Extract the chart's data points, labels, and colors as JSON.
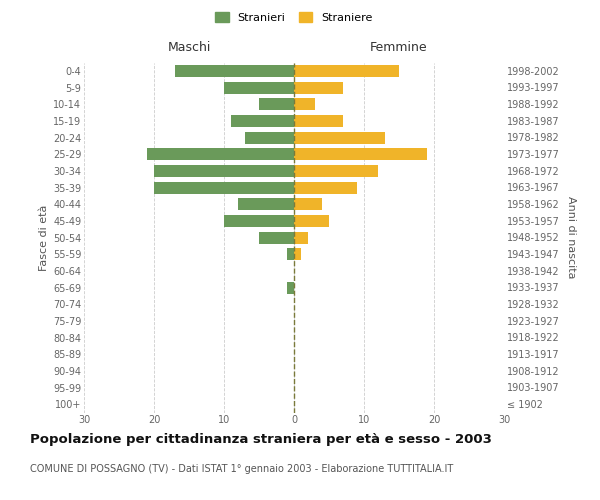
{
  "age_groups": [
    "100+",
    "95-99",
    "90-94",
    "85-89",
    "80-84",
    "75-79",
    "70-74",
    "65-69",
    "60-64",
    "55-59",
    "50-54",
    "45-49",
    "40-44",
    "35-39",
    "30-34",
    "25-29",
    "20-24",
    "15-19",
    "10-14",
    "5-9",
    "0-4"
  ],
  "birth_years": [
    "≤ 1902",
    "1903-1907",
    "1908-1912",
    "1913-1917",
    "1918-1922",
    "1923-1927",
    "1928-1932",
    "1933-1937",
    "1938-1942",
    "1943-1947",
    "1948-1952",
    "1953-1957",
    "1958-1962",
    "1963-1967",
    "1968-1972",
    "1973-1977",
    "1978-1982",
    "1983-1987",
    "1988-1992",
    "1993-1997",
    "1998-2002"
  ],
  "males": [
    0,
    0,
    0,
    0,
    0,
    0,
    0,
    1,
    0,
    1,
    5,
    10,
    8,
    20,
    20,
    21,
    7,
    9,
    5,
    10,
    17
  ],
  "females": [
    0,
    0,
    0,
    0,
    0,
    0,
    0,
    0,
    0,
    1,
    2,
    5,
    4,
    9,
    12,
    19,
    13,
    7,
    3,
    7,
    15
  ],
  "male_color": "#6a9a5a",
  "female_color": "#f0b429",
  "center_line_color": "#7a7a3a",
  "grid_color": "#cccccc",
  "bg_color": "#ffffff",
  "title": "Popolazione per cittadinanza straniera per età e sesso - 2003",
  "subtitle": "COMUNE DI POSSAGNO (TV) - Dati ISTAT 1° gennaio 2003 - Elaborazione TUTTITALIA.IT",
  "ylabel_left": "Fasce di età",
  "ylabel_right": "Anni di nascita",
  "header_left": "Maschi",
  "header_right": "Femmine",
  "legend_male": "Stranieri",
  "legend_female": "Straniere",
  "xlim": 30,
  "bar_height": 0.72,
  "tick_fontsize": 7,
  "label_fontsize": 8,
  "header_fontsize": 9,
  "title_fontsize": 9.5,
  "subtitle_fontsize": 7
}
